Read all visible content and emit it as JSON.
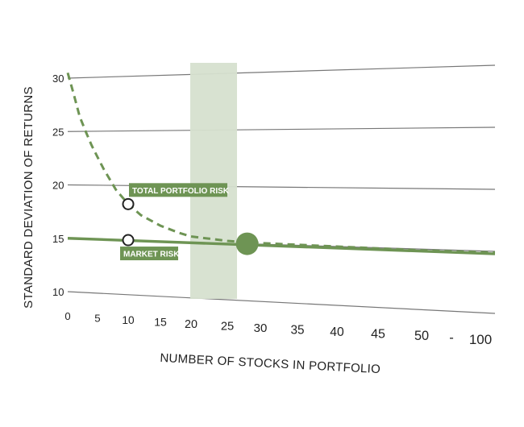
{
  "chart_data": {
    "type": "line",
    "xlabel": "NUMBER OF STOCKS IN PORTFOLIO",
    "ylabel": "STANDARD DEVIATION OF RETURNS",
    "x_ticks": [
      "0",
      "5",
      "10",
      "15",
      "20",
      "25",
      "30",
      "35",
      "40",
      "45",
      "50",
      "-",
      "100"
    ],
    "y_ticks": [
      "30",
      "25",
      "20",
      "15",
      "10"
    ],
    "ylim": [
      10,
      30
    ],
    "grid": true,
    "series": [
      {
        "name": "TOTAL PORTFOLIO RISK",
        "style": "dashed",
        "color": "#6e9454",
        "x": [
          0,
          1,
          2,
          3,
          4,
          5,
          6,
          8,
          10,
          12,
          15,
          18,
          20,
          25,
          30,
          40,
          50,
          100
        ],
        "y": [
          30.5,
          28.5,
          26.4,
          25.0,
          23.7,
          22.6,
          21.5,
          19.6,
          18.3,
          17.3,
          16.4,
          15.8,
          15.5,
          15.2,
          15.1,
          15.0,
          14.9,
          14.9
        ]
      },
      {
        "name": "MARKET RISK",
        "style": "solid",
        "color": "#6e9454",
        "x": [
          0,
          100
        ],
        "y": [
          15.0,
          14.8
        ]
      }
    ],
    "annotations": [
      {
        "label": "TOTAL PORTFOLIO RISK",
        "x": 10,
        "y": 18.3
      },
      {
        "label": "MARKET RISK",
        "x": 10,
        "y": 15.0
      }
    ],
    "highlight_band": {
      "x_from": 20,
      "x_to": 25
    },
    "convergence_point": {
      "x": 28,
      "y": 15.0
    },
    "colors": {
      "accent": "#6e9454",
      "band": "#d6e0cf",
      "grid": "#777777",
      "text": "#222222"
    }
  }
}
